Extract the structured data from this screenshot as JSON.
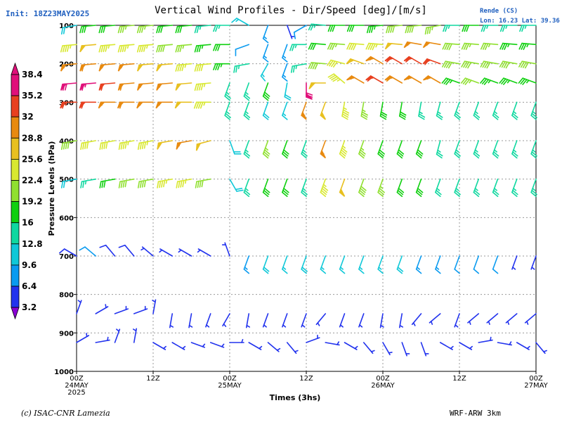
{
  "header": {
    "init_label": "Init: 18Z23MAY2025",
    "title": "Vertical Wind Profiles - Dir/Speed [deg]/[m/s]",
    "location": "Rende (CS)",
    "coords": "Lon: 16.23 Lat: 39.36"
  },
  "footer": {
    "credit": "(c) ISAC-CNR Lamezia",
    "model": "WRF-ARW 3km"
  },
  "chart_data": {
    "type": "wind-barbs",
    "title": "Vertical Wind Profiles - Dir/Speed [deg]/[m/s]",
    "xlabel": "Times (3hs)",
    "ylabel": "Pressure Levels (hPa)",
    "ylim": [
      1000,
      100
    ],
    "grid": true,
    "pressure_ticks": [
      100,
      200,
      300,
      400,
      500,
      600,
      700,
      800,
      900,
      1000
    ],
    "x_ticks": [
      {
        "hour": 6,
        "label": "00Z",
        "sub1": "24MAY",
        "sub2": "2025"
      },
      {
        "hour": 18,
        "label": "12Z",
        "sub1": "",
        "sub2": ""
      },
      {
        "hour": 30,
        "label": "00Z",
        "sub1": "25MAY",
        "sub2": ""
      },
      {
        "hour": 42,
        "label": "12Z",
        "sub1": "",
        "sub2": ""
      },
      {
        "hour": 54,
        "label": "00Z",
        "sub1": "26MAY",
        "sub2": ""
      },
      {
        "hour": 66,
        "label": "12Z",
        "sub1": "",
        "sub2": ""
      },
      {
        "hour": 78,
        "label": "00Z",
        "sub1": "27MAY",
        "sub2": ""
      }
    ],
    "x_range_hours": [
      6,
      78
    ],
    "times_hours": [
      6,
      9,
      12,
      15,
      18,
      21,
      24,
      27,
      30,
      33,
      36,
      39,
      42,
      45,
      48,
      51,
      54,
      57,
      60,
      63,
      66,
      69,
      72,
      75,
      78
    ],
    "levels_hpa": [
      100,
      150,
      200,
      250,
      300,
      400,
      500,
      700,
      850,
      925
    ],
    "colorbar": {
      "labels": [
        "3.2",
        "6.4",
        "9.6",
        "12.8",
        "16",
        "19.2",
        "22.4",
        "25.6",
        "28.8",
        "32",
        "35.2",
        "38.4"
      ],
      "colors": [
        "#8a00d4",
        "#2233ee",
        "#0a9bf0",
        "#10c8d8",
        "#10d8a0",
        "#10d010",
        "#90e030",
        "#d8e830",
        "#e8c020",
        "#e88a10",
        "#e84020",
        "#e0107a",
        "#e0107a"
      ]
    },
    "speed_ms_by_level": {
      "100": [
        12,
        17,
        18,
        20,
        20,
        17,
        16,
        14,
        13,
        10,
        9,
        5,
        7,
        14,
        16,
        17,
        19,
        21,
        22,
        20,
        15,
        16,
        15,
        14,
        14
      ],
      "150": [
        25,
        26,
        24,
        25,
        24,
        21,
        20,
        19,
        16,
        7,
        8,
        8,
        13,
        18,
        20,
        23,
        25,
        27,
        29,
        29,
        21,
        20,
        20,
        19,
        19
      ],
      "200": [
        30,
        31,
        30,
        29,
        28,
        26,
        25,
        23,
        19,
        14,
        10,
        9,
        15,
        21,
        23,
        27,
        30,
        32,
        33,
        33,
        22,
        22,
        21,
        21,
        21
      ],
      "250": [
        38,
        36,
        33,
        31,
        30,
        29,
        26,
        25,
        15,
        14,
        16,
        12,
        38,
        27,
        24,
        30,
        32,
        31,
        30,
        29,
        19,
        20,
        19,
        19,
        19
      ],
      "300": [
        35,
        32,
        30,
        31,
        30,
        29,
        27,
        24,
        14,
        13,
        11,
        10,
        30,
        27,
        24,
        20,
        18,
        16,
        15,
        14,
        14,
        15,
        15,
        14,
        13
      ],
      "400": [
        22,
        23,
        23,
        24,
        25,
        27,
        30,
        28,
        12,
        14,
        20,
        17,
        14,
        30,
        24,
        20,
        18,
        18,
        16,
        15,
        15,
        14,
        14,
        13,
        13
      ],
      "500": [
        12,
        13,
        18,
        21,
        22,
        25,
        24,
        22,
        12,
        13,
        16,
        16,
        14,
        25,
        27,
        22,
        20,
        18,
        16,
        14,
        14,
        14,
        14,
        13,
        14
      ],
      "700": [
        6,
        7,
        6,
        6,
        5,
        5,
        5,
        5,
        4,
        9,
        11,
        10,
        12,
        10,
        10,
        10,
        10,
        11,
        8,
        8,
        7,
        7,
        7,
        5,
        4
      ],
      "850": [
        4,
        4,
        4,
        4,
        4,
        4,
        4,
        4,
        4,
        4,
        4,
        4,
        4,
        4,
        4,
        4,
        4,
        4,
        4,
        4,
        4,
        4,
        4,
        4,
        4
      ],
      "925": [
        4,
        4,
        4,
        4,
        4,
        4,
        4,
        4,
        4,
        4,
        4,
        4,
        4,
        4,
        4,
        4,
        4,
        4,
        4,
        4,
        4,
        4,
        4,
        4,
        4
      ]
    },
    "direction_deg_by_level": {
      "100": [
        260,
        265,
        265,
        265,
        265,
        265,
        265,
        265,
        270,
        300,
        200,
        160,
        240,
        275,
        270,
        270,
        265,
        265,
        265,
        260,
        270,
        270,
        270,
        270,
        270
      ],
      "150": [
        265,
        265,
        265,
        265,
        265,
        265,
        265,
        265,
        270,
        250,
        200,
        200,
        270,
        275,
        275,
        275,
        275,
        275,
        280,
        280,
        275,
        275,
        275,
        275,
        275
      ],
      "200": [
        265,
        265,
        265,
        265,
        265,
        265,
        265,
        265,
        270,
        260,
        210,
        200,
        260,
        275,
        285,
        290,
        300,
        300,
        300,
        290,
        280,
        280,
        280,
        280,
        280
      ],
      "250": [
        265,
        265,
        265,
        265,
        265,
        265,
        265,
        265,
        200,
        200,
        200,
        190,
        180,
        270,
        310,
        300,
        300,
        300,
        300,
        300,
        290,
        290,
        290,
        290,
        290
      ],
      "300": [
        270,
        270,
        270,
        270,
        270,
        270,
        270,
        270,
        200,
        200,
        200,
        200,
        200,
        200,
        190,
        190,
        190,
        190,
        190,
        195,
        200,
        200,
        200,
        200,
        200
      ],
      "400": [
        260,
        260,
        260,
        260,
        260,
        260,
        260,
        255,
        160,
        200,
        200,
        200,
        200,
        200,
        200,
        200,
        200,
        200,
        200,
        195,
        200,
        200,
        200,
        200,
        200
      ],
      "500": [
        260,
        260,
        260,
        260,
        260,
        260,
        260,
        260,
        150,
        200,
        200,
        200,
        200,
        200,
        200,
        200,
        200,
        200,
        200,
        200,
        200,
        200,
        200,
        200,
        200
      ],
      "700": [
        300,
        310,
        320,
        320,
        310,
        300,
        300,
        300,
        340,
        200,
        200,
        200,
        200,
        200,
        200,
        200,
        200,
        200,
        200,
        200,
        200,
        200,
        200,
        200,
        200
      ],
      "850": [
        20,
        60,
        70,
        70,
        10,
        190,
        190,
        200,
        210,
        190,
        200,
        200,
        200,
        220,
        200,
        200,
        190,
        190,
        220,
        230,
        200,
        230,
        230,
        230,
        230
      ],
      "925": [
        60,
        80,
        20,
        10,
        120,
        120,
        110,
        110,
        90,
        120,
        130,
        140,
        70,
        100,
        120,
        140,
        150,
        160,
        160,
        120,
        120,
        80,
        100,
        120,
        140
      ]
    }
  }
}
